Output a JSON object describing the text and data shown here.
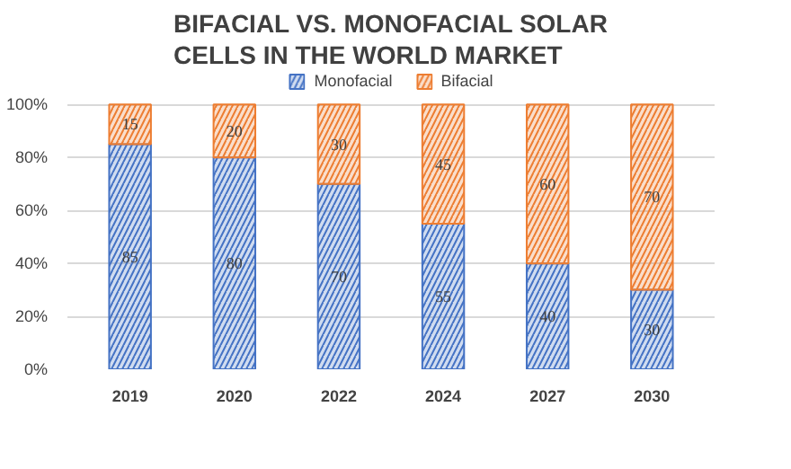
{
  "chart_data": {
    "type": "bar",
    "title": "BIFACIAL VS. MONOFACIAL SOLAR CELLS IN THE WORLD MARKET",
    "stacked": true,
    "data_labels": true,
    "legend": "top",
    "grid": "y",
    "categories": [
      "2019",
      "2020",
      "2022",
      "2024",
      "2027",
      "2030"
    ],
    "series": [
      {
        "name": "Monofacial",
        "color": "#4472c4",
        "values": [
          85,
          80,
          70,
          55,
          40,
          30
        ]
      },
      {
        "name": "Bifacial",
        "color": "#ed7d31",
        "values": [
          15,
          20,
          30,
          45,
          60,
          70
        ]
      }
    ],
    "ylim": [
      0,
      100
    ],
    "yticks": [
      {
        "value": 0,
        "label": "0%"
      },
      {
        "value": 20,
        "label": "20%"
      },
      {
        "value": 40,
        "label": "40%"
      },
      {
        "value": 60,
        "label": "60%"
      },
      {
        "value": 80,
        "label": "80%"
      },
      {
        "value": 100,
        "label": "100%"
      }
    ]
  }
}
